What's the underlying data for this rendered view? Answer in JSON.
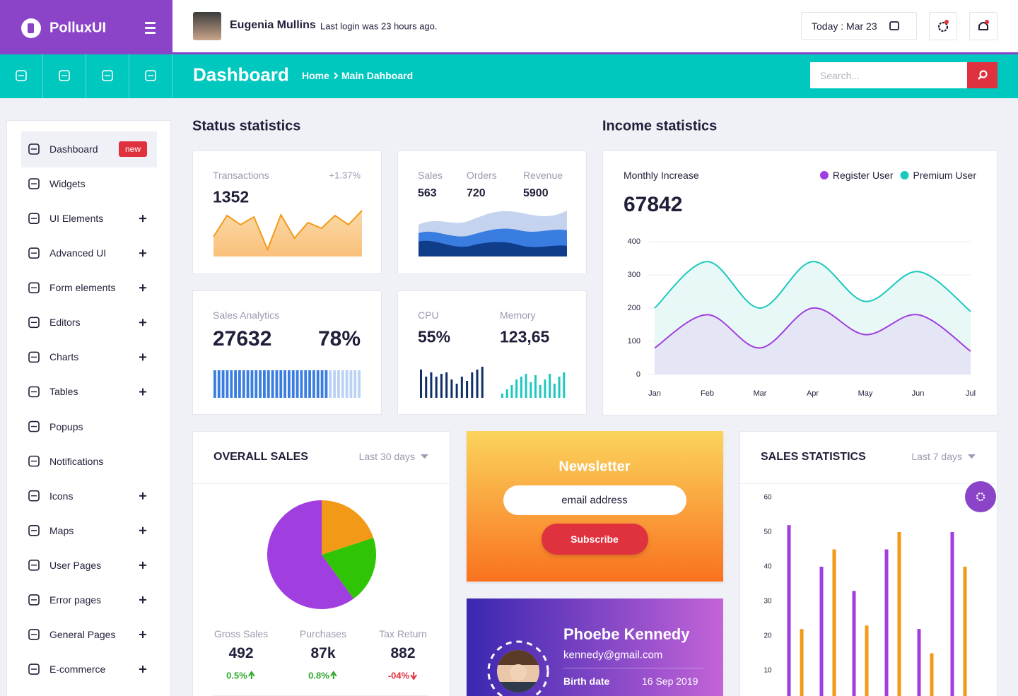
{
  "header": {
    "brand": "PolluxUI",
    "user_name": "Eugenia Mullins",
    "last_login": "Last login was 23 hours ago.",
    "date": "Today : Mar 23"
  },
  "subheader": {
    "title": "Dashboard",
    "breadcrumb": [
      "Home",
      "Main Dahboard"
    ],
    "search_placeholder": "Search..."
  },
  "sidebar": [
    {
      "label": "Dashboard",
      "badge": "new",
      "active": true
    },
    {
      "label": "Widgets"
    },
    {
      "label": "UI Elements",
      "expandable": true
    },
    {
      "label": "Advanced UI",
      "expandable": true
    },
    {
      "label": "Form elements",
      "expandable": true
    },
    {
      "label": "Editors",
      "expandable": true
    },
    {
      "label": "Charts",
      "expandable": true
    },
    {
      "label": "Tables",
      "expandable": true
    },
    {
      "label": "Popups"
    },
    {
      "label": "Notifications"
    },
    {
      "label": "Icons",
      "expandable": true
    },
    {
      "label": "Maps",
      "expandable": true
    },
    {
      "label": "User Pages",
      "expandable": true
    },
    {
      "label": "Error pages",
      "expandable": true
    },
    {
      "label": "General Pages",
      "expandable": true
    },
    {
      "label": "E-commerce",
      "expandable": true
    }
  ],
  "status_statistics": {
    "title": "Status statistics",
    "transactions": {
      "label": "Transactions",
      "change": "+1.37%",
      "value": 1352,
      "chart": {
        "type": "area",
        "values": [
          28,
          58,
          45,
          56,
          10,
          59,
          26,
          48,
          40,
          58,
          45,
          65
        ],
        "ylim": [
          0,
          70
        ],
        "color": "#f29a18"
      }
    },
    "sales": {
      "metrics": [
        {
          "label": "Sales",
          "value": 563
        },
        {
          "label": "Orders",
          "value": 720
        },
        {
          "label": "Revenue",
          "value": 5900
        }
      ]
    },
    "sales_analytics": {
      "label": "Sales Analytics",
      "value": 27632,
      "progress": {
        "value": 78,
        "label": "78%"
      },
      "color": "#3a7de0"
    },
    "cpu": {
      "label": "CPU",
      "value": "55%",
      "chart": {
        "type": "bar",
        "values": [
          40,
          30,
          36,
          30,
          34,
          36,
          26,
          20,
          30,
          24,
          36,
          40,
          44
        ],
        "ylim": [
          0,
          48
        ],
        "color": "#0f2f66"
      }
    },
    "memory": {
      "label": "Memory",
      "value": "123,65",
      "chart": {
        "type": "bar",
        "values": [
          6,
          12,
          18,
          26,
          30,
          34,
          22,
          32,
          18,
          26,
          34,
          20,
          30,
          36
        ],
        "ylim": [
          0,
          48
        ],
        "color": "#1cc8be"
      }
    }
  },
  "income_statistics": {
    "title": "Income statistics",
    "label": "Monthly Increase",
    "value": 67842,
    "chart": {
      "type": "line",
      "categories": [
        "Jan",
        "Feb",
        "Mar",
        "Apr",
        "May",
        "Jun",
        "Jul"
      ],
      "series": [
        {
          "name": "Register User",
          "color": "#a03ee0",
          "values": [
            80,
            180,
            80,
            200,
            120,
            180,
            70
          ]
        },
        {
          "name": "Premium User",
          "color": "#1cc8be",
          "values": [
            200,
            340,
            200,
            340,
            220,
            310,
            190
          ]
        }
      ],
      "ylim": [
        0,
        400
      ],
      "yticks": [
        0,
        100,
        200,
        300,
        400
      ],
      "grid": true,
      "legend": "top-right"
    }
  },
  "overall_sales": {
    "title": "OVERALL SALES",
    "period": "Last 30 days",
    "chart": {
      "type": "pie",
      "values": [
        20,
        20,
        60
      ],
      "colors": [
        "#f29a18",
        "#2fc406",
        "#a03ee0"
      ]
    },
    "stats": [
      {
        "label": "Gross Sales",
        "value": 492,
        "change": "0.5%",
        "trend": "up"
      },
      {
        "label": "Purchases",
        "value": "87k",
        "change": "0.8%",
        "trend": "up"
      },
      {
        "label": "Tax Return",
        "value": 882,
        "change": "-04%",
        "trend": "down"
      }
    ]
  },
  "newsletter": {
    "title": "Newsletter",
    "placeholder": "email address",
    "button": "Subscribe"
  },
  "profile": {
    "name": "Phoebe Kennedy",
    "email": "kennedy@gmail.com",
    "birth_label": "Birth date",
    "birth_date": "16 Sep 2019"
  },
  "sales_statistics": {
    "title": "SALES STATISTICS",
    "period": "Last 7 days",
    "chart": {
      "type": "bar",
      "categories": [
        null,
        null,
        null,
        null,
        null,
        null
      ],
      "series": [
        {
          "color": "#a03ee0",
          "values": [
            52,
            40,
            33,
            45,
            22,
            50
          ]
        },
        {
          "color": "#f29a18",
          "values": [
            22,
            45,
            23,
            50,
            15,
            40
          ]
        }
      ],
      "ylim": [
        0,
        60
      ],
      "yticks": [
        10,
        20,
        30,
        40,
        50,
        60
      ]
    }
  }
}
